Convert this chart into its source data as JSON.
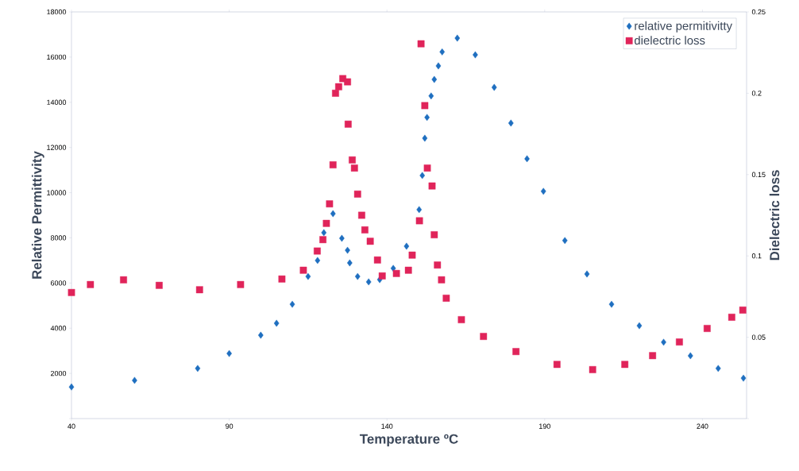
{
  "chart_data": {
    "type": "scatter",
    "xlabel": "Temperature ºC",
    "ylabel": "Relative Permittivity",
    "y2label": "Dielectric loss",
    "xlim": [
      40,
      254
    ],
    "xticks": [
      40,
      90,
      140,
      190,
      240
    ],
    "ylim": [
      0,
      18000
    ],
    "yticks": [
      {
        "value": 0,
        "label": null
      },
      2000,
      4000,
      6000,
      8000,
      10000,
      12000,
      14000,
      16000,
      18000
    ],
    "y2lim": [
      0,
      0.25
    ],
    "y2ticks": [
      {
        "value": 0,
        "label": null
      },
      0.05,
      0.1,
      0.15,
      0.2,
      0.25
    ],
    "legend": "top right",
    "grid": false,
    "series": [
      {
        "name": "relative permitivitty",
        "color": "#1f6fc0",
        "marker": "diamond",
        "x": [
          40,
          60,
          80,
          90,
          100,
          105,
          110,
          115,
          118,
          120,
          122.9,
          125.7,
          127.5,
          128.2,
          130.7,
          134.2,
          137.7,
          142,
          146.2,
          150.2,
          151.2,
          152,
          152.7,
          154,
          155,
          156.3,
          157.5,
          162.3,
          168,
          174,
          179.3,
          184.4,
          189.6,
          196.4,
          203.4,
          211.2,
          220,
          227.7,
          236.2,
          245,
          253
        ],
        "values": [
          1400,
          1690,
          2220,
          2880,
          3690,
          4220,
          5060,
          6290,
          7000,
          8230,
          9070,
          7980,
          7450,
          6890,
          6290,
          6050,
          6150,
          6650,
          7630,
          9250,
          10760,
          12410,
          13330,
          14280,
          15010,
          15610,
          16230,
          16840,
          16100,
          14660,
          13080,
          11500,
          10060,
          7880,
          6400,
          5060,
          4110,
          3380,
          2780,
          2220,
          1790
        ]
      },
      {
        "name": "dielectric loss",
        "color": "#e0245a",
        "marker": "square",
        "axis": "y2",
        "x": [
          40,
          46,
          56.5,
          67.8,
          80.6,
          93.6,
          106.7,
          113.5,
          117.9,
          119.7,
          120.8,
          121.8,
          122.9,
          123.7,
          124.7,
          126,
          127.5,
          127.7,
          129,
          129.7,
          130.7,
          132,
          133,
          134.7,
          137,
          138.5,
          143,
          146.8,
          148,
          150.3,
          150.8,
          152,
          152.8,
          154.3,
          155,
          156,
          157.3,
          158.8,
          163.6,
          170.6,
          180.9,
          193.9,
          205.2,
          215.4,
          224.2,
          232.7,
          241.5,
          249.3,
          252.8
        ],
        "values": [
          0.0775,
          0.0824,
          0.0853,
          0.0819,
          0.0792,
          0.0824,
          0.0858,
          0.0912,
          0.103,
          0.11,
          0.12,
          0.132,
          0.156,
          0.2,
          0.204,
          0.209,
          0.207,
          0.181,
          0.159,
          0.154,
          0.138,
          0.125,
          0.116,
          0.109,
          0.0975,
          0.0877,
          0.0892,
          0.0912,
          0.1005,
          0.1216,
          0.2304,
          0.1924,
          0.154,
          0.143,
          0.113,
          0.0944,
          0.0853,
          0.074,
          0.0608,
          0.0505,
          0.0412,
          0.0333,
          0.0301,
          0.0333,
          0.0387,
          0.0471,
          0.0554,
          0.0623,
          0.0667
        ]
      }
    ]
  }
}
